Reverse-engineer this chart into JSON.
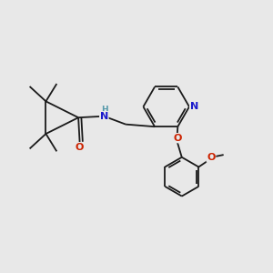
{
  "bg": "#e8e8e8",
  "bc": "#1a1a1a",
  "nc": "#1a1acc",
  "oc": "#cc2200",
  "hc": "#5599aa",
  "fs": 7.5,
  "lw": 1.3,
  "xlim": [
    0,
    10
  ],
  "ylim": [
    0,
    10
  ]
}
